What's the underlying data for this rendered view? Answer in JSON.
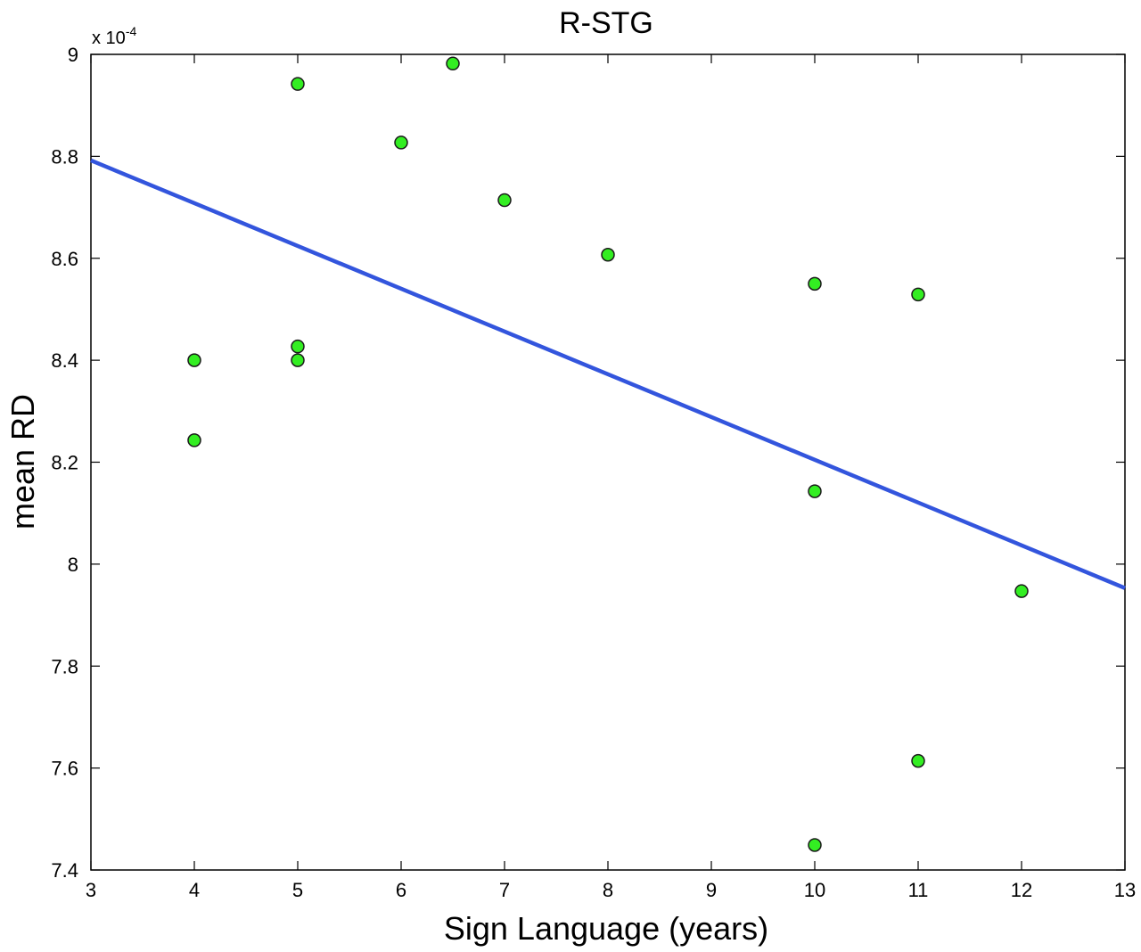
{
  "chart_data": {
    "type": "scatter",
    "title": "R-STG",
    "xlabel": "Sign Language (years)",
    "ylabel": "mean RD",
    "y_multiplier": {
      "base": "x 10",
      "exponent": "-4"
    },
    "xlim": [
      3,
      13
    ],
    "ylim": [
      7.4,
      9.0
    ],
    "x_ticks": [
      3,
      4,
      5,
      6,
      7,
      8,
      9,
      10,
      11,
      12,
      13
    ],
    "y_ticks": [
      7.4,
      7.6,
      7.8,
      8.0,
      8.2,
      8.4,
      8.6,
      8.8,
      9.0
    ],
    "x_tick_labels": [
      "3",
      "4",
      "5",
      "6",
      "7",
      "8",
      "9",
      "10",
      "11",
      "12",
      "13"
    ],
    "y_tick_labels": [
      "7.4",
      "7.6",
      "7.8",
      "8",
      "8.2",
      "8.4",
      "8.6",
      "8.8",
      "9"
    ],
    "points": [
      {
        "x": 4,
        "y": 8.4
      },
      {
        "x": 4,
        "y": 8.243
      },
      {
        "x": 5,
        "y": 8.942
      },
      {
        "x": 5,
        "y": 8.427
      },
      {
        "x": 5,
        "y": 8.4
      },
      {
        "x": 6,
        "y": 8.827
      },
      {
        "x": 6.5,
        "y": 8.982
      },
      {
        "x": 7,
        "y": 8.714
      },
      {
        "x": 8,
        "y": 8.607
      },
      {
        "x": 10,
        "y": 8.55
      },
      {
        "x": 10,
        "y": 8.143
      },
      {
        "x": 10,
        "y": 7.449
      },
      {
        "x": 11,
        "y": 8.529
      },
      {
        "x": 11,
        "y": 7.614
      },
      {
        "x": 12,
        "y": 7.947
      }
    ],
    "fit_line": {
      "x": [
        3,
        13
      ],
      "y": [
        8.792,
        7.953
      ]
    },
    "colors": {
      "marker_fill": "#33ee22",
      "marker_edge": "#1a1a1a",
      "fit_line": "#3355dd",
      "axis": "#000000"
    },
    "grid": false
  }
}
